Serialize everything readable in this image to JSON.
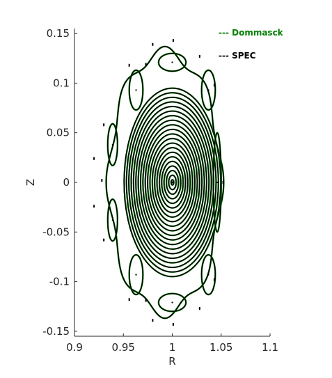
{
  "chart_data": {
    "type": "scatter",
    "title": "",
    "xlabel": "R",
    "ylabel": "Z",
    "xlim": [
      0.9,
      1.1
    ],
    "ylim": [
      -0.155,
      0.155
    ],
    "xticks": [
      "0.9",
      "0.95",
      "1",
      "1.05",
      "1.1"
    ],
    "xtick_values": [
      0.9,
      0.95,
      1.0,
      1.05,
      1.1
    ],
    "yticks": [
      "0.15",
      "0.1",
      "0.05",
      "0",
      "-0.05",
      "-0.1",
      "-0.15"
    ],
    "ytick_values": [
      0.15,
      0.1,
      0.05,
      0.0,
      -0.05,
      -0.1,
      -0.15
    ],
    "grid": false,
    "legend_position": "top-right",
    "legend": [
      {
        "label": "--- Dommasck",
        "color": "#007f00"
      },
      {
        "label": "--- SPEC",
        "color": "#000000"
      }
    ],
    "series": [
      {
        "name": "Dommasck",
        "color": "#007f00"
      },
      {
        "name": "SPEC",
        "color": "#000000"
      }
    ],
    "axis": {
      "center": [
        1.0,
        0.0
      ]
    },
    "nested_surfaces": {
      "count": 21,
      "semi_axes_R": [
        0.0014,
        0.0038,
        0.0062,
        0.0086,
        0.011,
        0.0134,
        0.0158,
        0.0182,
        0.0206,
        0.023,
        0.0254,
        0.0278,
        0.0302,
        0.0326,
        0.035,
        0.0374,
        0.0398,
        0.0422,
        0.0446,
        0.047,
        0.0494
      ],
      "elongation": 1.95,
      "outer_R_range": [
        0.951,
        1.049
      ],
      "outer_Z_range": [
        -0.11,
        0.11
      ]
    },
    "boundary_surface": {
      "R_range": [
        0.935,
        1.05
      ],
      "Z_range": [
        -0.131,
        0.131
      ],
      "island_lobes": 8
    },
    "islands": [
      {
        "R": 1.0,
        "Z": 0.121,
        "dR": 0.014,
        "dZ": 0.009
      },
      {
        "R": 1.0,
        "Z": -0.121,
        "dR": 0.014,
        "dZ": 0.009
      },
      {
        "R": 0.963,
        "Z": 0.093,
        "dR": 0.007,
        "dZ": 0.02
      },
      {
        "R": 0.963,
        "Z": -0.093,
        "dR": 0.007,
        "dZ": 0.02
      },
      {
        "R": 0.939,
        "Z": 0.038,
        "dR": 0.005,
        "dZ": 0.021
      },
      {
        "R": 0.939,
        "Z": -0.038,
        "dR": 0.005,
        "dZ": 0.021
      },
      {
        "R": 1.037,
        "Z": 0.093,
        "dR": 0.007,
        "dZ": 0.02
      },
      {
        "R": 1.037,
        "Z": -0.093,
        "dR": 0.007,
        "dZ": 0.02
      },
      {
        "R": 1.046,
        "Z": 0.0,
        "dR": 0.004,
        "dZ": 0.05
      }
    ],
    "outer_dots": [
      [
        0.98,
        0.139
      ],
      [
        1.001,
        0.143
      ],
      [
        1.028,
        0.127
      ],
      [
        1.043,
        0.098
      ],
      [
        0.956,
        0.118
      ],
      [
        0.93,
        0.058
      ],
      [
        0.92,
        0.024
      ],
      [
        0.928,
        0.002
      ],
      [
        0.92,
        -0.024
      ],
      [
        0.93,
        -0.058
      ],
      [
        0.956,
        -0.118
      ],
      [
        0.98,
        -0.139
      ],
      [
        1.001,
        -0.143
      ],
      [
        1.028,
        -0.127
      ],
      [
        1.043,
        -0.098
      ],
      [
        1.052,
        0.0
      ],
      [
        0.973,
        0.119
      ],
      [
        0.973,
        -0.119
      ]
    ]
  }
}
